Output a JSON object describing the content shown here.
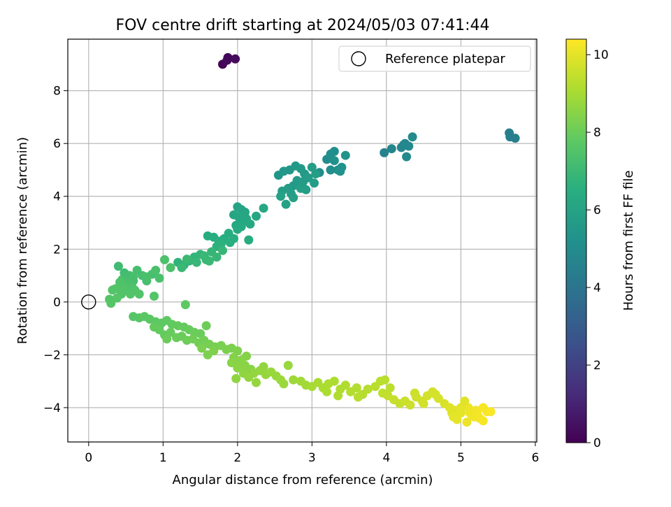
{
  "chart_data": {
    "type": "scatter",
    "title": "FOV centre drift starting at 2024/05/03 07:41:44",
    "xlabel": "Angular distance from reference (arcmin)",
    "ylabel": "Rotation from reference (arcmin)",
    "xlim": [
      -0.28,
      6.02
    ],
    "ylim": [
      -5.3,
      9.95
    ],
    "xticks": [
      "0",
      "1",
      "2",
      "3",
      "4",
      "5",
      "6"
    ],
    "yticks": [
      "−4",
      "−2",
      "0",
      "2",
      "4",
      "6",
      "8"
    ],
    "grid": true,
    "legend": {
      "position": "top-right",
      "entries": [
        "Reference platepar"
      ]
    },
    "reference_point": {
      "x": 0,
      "y": 0
    },
    "colorbar": {
      "label": "Hours from first FF file",
      "range": [
        0,
        10.4
      ],
      "ticks": [
        "0",
        "2",
        "4",
        "6",
        "8",
        "10"
      ],
      "colormap": "viridis"
    },
    "points": [
      [
        1.8,
        9.0,
        0.1
      ],
      [
        1.87,
        9.25,
        0.2
      ],
      [
        1.97,
        9.2,
        0.3
      ],
      [
        1.86,
        9.15,
        0.2
      ],
      [
        5.65,
        6.4,
        4.4
      ],
      [
        5.73,
        6.2,
        4.5
      ],
      [
        5.66,
        6.25,
        4.45
      ],
      [
        3.97,
        5.65,
        4.6
      ],
      [
        4.07,
        5.8,
        4.7
      ],
      [
        4.2,
        5.85,
        4.75
      ],
      [
        4.25,
        6.0,
        4.8
      ],
      [
        4.3,
        5.9,
        4.85
      ],
      [
        4.35,
        6.25,
        4.9
      ],
      [
        4.27,
        5.5,
        4.85
      ],
      [
        4.23,
        5.95,
        4.8
      ],
      [
        3.1,
        4.9,
        5.0
      ],
      [
        3.2,
        5.4,
        5.05
      ],
      [
        3.25,
        5.6,
        5.1
      ],
      [
        3.3,
        5.7,
        5.15
      ],
      [
        3.35,
        5.0,
        5.2
      ],
      [
        3.4,
        5.1,
        5.25
      ],
      [
        3.25,
        5.0,
        5.1
      ],
      [
        3.3,
        5.35,
        5.2
      ],
      [
        3.45,
        5.55,
        5.3
      ],
      [
        3.38,
        4.95,
        5.25
      ],
      [
        2.55,
        4.8,
        5.4
      ],
      [
        2.62,
        4.95,
        5.45
      ],
      [
        2.7,
        5.0,
        5.5
      ],
      [
        2.78,
        5.15,
        5.55
      ],
      [
        2.85,
        5.05,
        5.6
      ],
      [
        2.9,
        4.85,
        5.65
      ],
      [
        2.95,
        4.7,
        5.7
      ],
      [
        3.0,
        5.1,
        5.75
      ],
      [
        3.05,
        4.85,
        5.8
      ],
      [
        2.75,
        4.4,
        5.6
      ],
      [
        2.8,
        4.6,
        5.65
      ],
      [
        2.68,
        4.3,
        5.7
      ],
      [
        2.6,
        4.2,
        5.75
      ],
      [
        2.72,
        4.1,
        5.8
      ],
      [
        2.85,
        4.3,
        5.85
      ],
      [
        2.65,
        3.7,
        5.9
      ],
      [
        2.75,
        3.95,
        5.85
      ],
      [
        2.88,
        4.55,
        5.7
      ],
      [
        2.92,
        4.25,
        5.8
      ],
      [
        2.58,
        4.0,
        5.9
      ],
      [
        3.03,
        4.5,
        5.75
      ],
      [
        2.0,
        3.6,
        6.0
      ],
      [
        2.05,
        3.5,
        6.05
      ],
      [
        2.1,
        3.4,
        6.1
      ],
      [
        1.95,
        3.3,
        6.1
      ],
      [
        2.02,
        3.2,
        6.15
      ],
      [
        2.08,
        3.05,
        6.2
      ],
      [
        1.98,
        2.9,
        6.2
      ],
      [
        2.12,
        3.15,
        6.15
      ],
      [
        2.17,
        2.95,
        6.25
      ],
      [
        2.25,
        3.25,
        6.2
      ],
      [
        2.35,
        3.55,
        6.25
      ],
      [
        2.0,
        2.75,
        6.3
      ],
      [
        2.05,
        2.85,
        6.3
      ],
      [
        2.15,
        2.35,
        6.35
      ],
      [
        1.6,
        2.5,
        6.4
      ],
      [
        1.68,
        2.45,
        6.45
      ],
      [
        1.75,
        2.3,
        6.5
      ],
      [
        1.82,
        2.4,
        6.5
      ],
      [
        1.88,
        2.6,
        6.45
      ],
      [
        1.72,
        2.1,
        6.6
      ],
      [
        1.9,
        2.25,
        6.55
      ],
      [
        1.95,
        2.4,
        6.5
      ],
      [
        1.78,
        2.2,
        6.6
      ],
      [
        1.2,
        1.5,
        6.7
      ],
      [
        1.28,
        1.4,
        6.75
      ],
      [
        1.35,
        1.55,
        6.75
      ],
      [
        1.42,
        1.7,
        6.8
      ],
      [
        1.5,
        1.8,
        6.8
      ],
      [
        1.58,
        1.6,
        6.85
      ],
      [
        1.65,
        1.9,
        6.85
      ],
      [
        1.72,
        1.7,
        6.9
      ],
      [
        1.8,
        1.95,
        6.9
      ],
      [
        1.25,
        1.3,
        6.95
      ],
      [
        1.45,
        1.5,
        6.9
      ],
      [
        1.55,
        1.75,
        6.95
      ],
      [
        1.62,
        1.55,
        6.95
      ],
      [
        1.32,
        1.62,
        7.0
      ],
      [
        0.4,
        1.35,
        7.1
      ],
      [
        0.48,
        1.1,
        7.15
      ],
      [
        0.55,
        1.0,
        7.2
      ],
      [
        0.6,
        0.8,
        7.2
      ],
      [
        0.65,
        1.2,
        7.25
      ],
      [
        0.72,
        1.0,
        7.25
      ],
      [
        0.78,
        0.8,
        7.3
      ],
      [
        0.85,
        1.05,
        7.3
      ],
      [
        0.9,
        1.2,
        7.35
      ],
      [
        0.95,
        0.9,
        7.35
      ],
      [
        1.02,
        1.6,
        7.4
      ],
      [
        1.1,
        1.3,
        7.4
      ],
      [
        0.45,
        0.85,
        7.3
      ],
      [
        0.52,
        0.7,
        7.35
      ],
      [
        0.58,
        0.6,
        7.4
      ],
      [
        0.5,
        0.45,
        7.45
      ],
      [
        0.44,
        0.3,
        7.5
      ],
      [
        0.32,
        0.45,
        7.55
      ],
      [
        0.28,
        0.1,
        7.55
      ],
      [
        0.3,
        -0.05,
        7.6
      ],
      [
        0.38,
        0.15,
        7.6
      ],
      [
        0.56,
        0.3,
        7.55
      ],
      [
        0.62,
        0.45,
        7.5
      ],
      [
        0.68,
        0.3,
        7.5
      ],
      [
        0.46,
        0.55,
        7.5
      ],
      [
        0.42,
        0.75,
        7.45
      ],
      [
        0.6,
        0.95,
        7.3
      ],
      [
        0.36,
        0.5,
        7.55
      ],
      [
        0.77,
        0.95,
        7.35
      ],
      [
        0.88,
        0.22,
        7.55
      ],
      [
        0.6,
        -0.55,
        7.6
      ],
      [
        0.68,
        -0.6,
        7.65
      ],
      [
        0.75,
        -0.55,
        7.7
      ],
      [
        0.82,
        -0.65,
        7.7
      ],
      [
        0.9,
        -0.75,
        7.75
      ],
      [
        0.98,
        -0.8,
        7.8
      ],
      [
        1.05,
        -0.7,
        7.8
      ],
      [
        1.12,
        -0.85,
        7.85
      ],
      [
        1.2,
        -0.9,
        7.9
      ],
      [
        1.28,
        -0.95,
        7.9
      ],
      [
        1.35,
        -1.05,
        7.95
      ],
      [
        1.42,
        -1.15,
        8.0
      ],
      [
        1.5,
        -1.2,
        8.0
      ],
      [
        1.58,
        -0.9,
        8.05
      ],
      [
        1.3,
        -0.1,
        7.8
      ],
      [
        0.95,
        -1.05,
        7.85
      ],
      [
        1.02,
        -1.25,
        7.9
      ],
      [
        1.1,
        -1.15,
        7.95
      ],
      [
        1.18,
        -1.35,
        8.0
      ],
      [
        1.25,
        -1.3,
        8.0
      ],
      [
        1.32,
        -1.45,
        8.05
      ],
      [
        1.4,
        -1.4,
        8.1
      ],
      [
        1.48,
        -1.55,
        8.1
      ],
      [
        1.55,
        -1.45,
        8.15
      ],
      [
        1.62,
        -1.6,
        8.2
      ],
      [
        1.7,
        -1.7,
        8.2
      ],
      [
        1.78,
        -1.65,
        8.25
      ],
      [
        1.85,
        -1.8,
        8.3
      ],
      [
        1.92,
        -1.75,
        8.3
      ],
      [
        2.0,
        -1.85,
        8.35
      ],
      [
        1.6,
        -2.0,
        8.3
      ],
      [
        1.68,
        -1.85,
        8.35
      ],
      [
        1.52,
        -1.75,
        8.3
      ],
      [
        1.05,
        -1.4,
        8.0
      ],
      [
        0.88,
        -0.95,
        7.9
      ],
      [
        1.95,
        -2.1,
        8.4
      ],
      [
        2.02,
        -2.25,
        8.45
      ],
      [
        2.1,
        -2.4,
        8.5
      ],
      [
        2.18,
        -2.55,
        8.5
      ],
      [
        1.92,
        -2.3,
        8.5
      ],
      [
        2.0,
        -2.5,
        8.55
      ],
      [
        2.08,
        -2.7,
        8.6
      ],
      [
        1.98,
        -2.9,
        8.6
      ],
      [
        2.15,
        -2.85,
        8.65
      ],
      [
        2.22,
        -2.7,
        8.65
      ],
      [
        2.3,
        -2.6,
        8.7
      ],
      [
        2.38,
        -2.75,
        8.7
      ],
      [
        2.45,
        -2.65,
        8.75
      ],
      [
        2.52,
        -2.8,
        8.75
      ],
      [
        2.58,
        -2.95,
        8.8
      ],
      [
        2.62,
        -3.1,
        8.8
      ],
      [
        2.68,
        -2.4,
        8.75
      ],
      [
        2.75,
        -2.95,
        8.85
      ],
      [
        2.85,
        -3.0,
        8.9
      ],
      [
        2.92,
        -3.15,
        8.9
      ],
      [
        2.25,
        -3.05,
        8.7
      ],
      [
        2.35,
        -2.45,
        8.65
      ],
      [
        2.05,
        -2.2,
        8.5
      ],
      [
        2.12,
        -2.05,
        8.45
      ],
      [
        3.0,
        -3.2,
        9.0
      ],
      [
        3.08,
        -3.05,
        9.05
      ],
      [
        3.15,
        -3.25,
        9.05
      ],
      [
        3.22,
        -3.1,
        9.1
      ],
      [
        3.3,
        -3.0,
        9.1
      ],
      [
        3.38,
        -3.3,
        9.15
      ],
      [
        3.45,
        -3.15,
        9.15
      ],
      [
        3.52,
        -3.4,
        9.2
      ],
      [
        3.6,
        -3.25,
        9.2
      ],
      [
        3.68,
        -3.5,
        9.25
      ],
      [
        3.75,
        -3.3,
        9.25
      ],
      [
        3.85,
        -3.2,
        9.3
      ],
      [
        3.92,
        -3.0,
        9.3
      ],
      [
        3.98,
        -2.95,
        9.3
      ],
      [
        4.05,
        -3.25,
        9.35
      ],
      [
        3.2,
        -3.4,
        9.1
      ],
      [
        3.35,
        -3.55,
        9.15
      ],
      [
        3.62,
        -3.6,
        9.25
      ],
      [
        3.95,
        -3.45,
        9.4
      ],
      [
        4.02,
        -3.55,
        9.45
      ],
      [
        4.1,
        -3.7,
        9.5
      ],
      [
        4.18,
        -3.85,
        9.5
      ],
      [
        4.25,
        -3.75,
        9.55
      ],
      [
        4.32,
        -3.9,
        9.6
      ],
      [
        4.4,
        -3.6,
        9.6
      ],
      [
        4.48,
        -3.75,
        9.65
      ],
      [
        4.55,
        -3.55,
        9.7
      ],
      [
        4.62,
        -3.4,
        9.7
      ],
      [
        4.7,
        -3.65,
        9.75
      ],
      [
        4.78,
        -3.85,
        9.8
      ],
      [
        4.38,
        -3.45,
        9.6
      ],
      [
        4.5,
        -3.85,
        9.7
      ],
      [
        4.66,
        -3.5,
        9.75
      ],
      [
        4.85,
        -4.0,
        9.9
      ],
      [
        4.92,
        -4.1,
        9.95
      ],
      [
        5.0,
        -4.2,
        10.0
      ],
      [
        5.05,
        -3.9,
        10.05
      ],
      [
        5.1,
        -4.0,
        10.1
      ],
      [
        5.15,
        -4.3,
        10.15
      ],
      [
        5.2,
        -4.1,
        10.2
      ],
      [
        5.25,
        -4.4,
        10.25
      ],
      [
        5.3,
        -4.5,
        10.3
      ],
      [
        5.35,
        -4.15,
        10.35
      ],
      [
        5.0,
        -4.0,
        10.0
      ],
      [
        4.95,
        -4.45,
        10.05
      ],
      [
        5.08,
        -4.55,
        10.1
      ],
      [
        5.12,
        -4.2,
        10.15
      ],
      [
        5.18,
        -4.35,
        10.2
      ],
      [
        5.05,
        -3.75,
        9.95
      ],
      [
        4.88,
        -4.2,
        9.95
      ],
      [
        5.22,
        -4.25,
        10.25
      ],
      [
        5.3,
        -4.0,
        10.3
      ],
      [
        5.4,
        -4.15,
        10.35
      ],
      [
        4.9,
        -4.35,
        10.0
      ]
    ]
  }
}
